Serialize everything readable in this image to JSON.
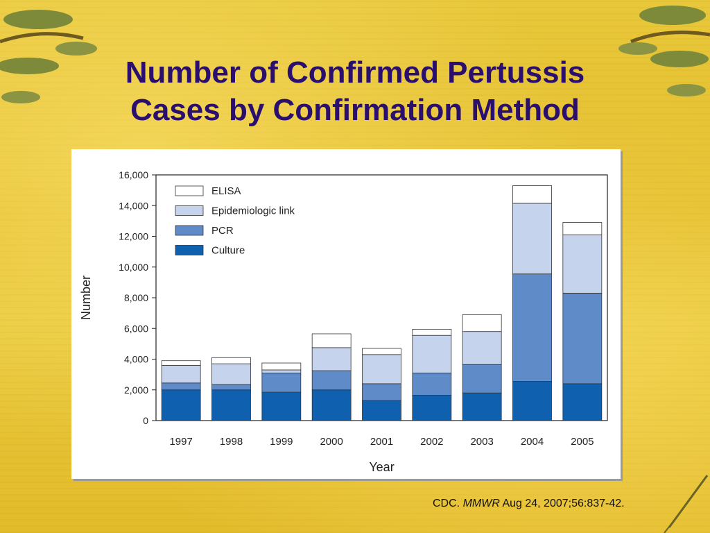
{
  "slide": {
    "title_line1": "Number of Confirmed Pertussis",
    "title_line2": "Cases by Confirmation Method",
    "citation_prefix": "CDC. ",
    "citation_journal": "MMWR",
    "citation_suffix": " Aug 24, 2007;56:837-42."
  },
  "chart_data": {
    "type": "bar",
    "stacked": true,
    "categories": [
      "1997",
      "1998",
      "1999",
      "2000",
      "2001",
      "2002",
      "2003",
      "2004",
      "2005"
    ],
    "series": [
      {
        "name": "Culture",
        "color": "#1060b0",
        "values": [
          2000,
          2000,
          1850,
          2000,
          1300,
          1650,
          1800,
          2550,
          2400
        ]
      },
      {
        "name": "PCR",
        "color": "#5f8cc8",
        "values": [
          450,
          350,
          1250,
          1250,
          1100,
          1450,
          1850,
          7000,
          5900
        ]
      },
      {
        "name": "Epidemiologic link",
        "color": "#c5d3ec",
        "values": [
          1150,
          1350,
          200,
          1500,
          1900,
          2450,
          2150,
          4600,
          3800
        ]
      },
      {
        "name": "ELISA",
        "color": "#ffffff",
        "values": [
          300,
          400,
          450,
          900,
          400,
          400,
          1100,
          1150,
          800
        ]
      }
    ],
    "xlabel": "Year",
    "ylabel": "Number",
    "ylim": [
      0,
      16000
    ],
    "yticks": [
      0,
      2000,
      4000,
      6000,
      8000,
      10000,
      12000,
      14000,
      16000
    ],
    "ytick_labels": [
      "0",
      "2,000",
      "4,000",
      "6,000",
      "8,000",
      "10,000",
      "12,000",
      "14,000",
      "16,000"
    ],
    "legend_order": [
      "ELISA",
      "Epidemiologic link",
      "PCR",
      "Culture"
    ],
    "legend_position": "top-left",
    "grid": false
  }
}
